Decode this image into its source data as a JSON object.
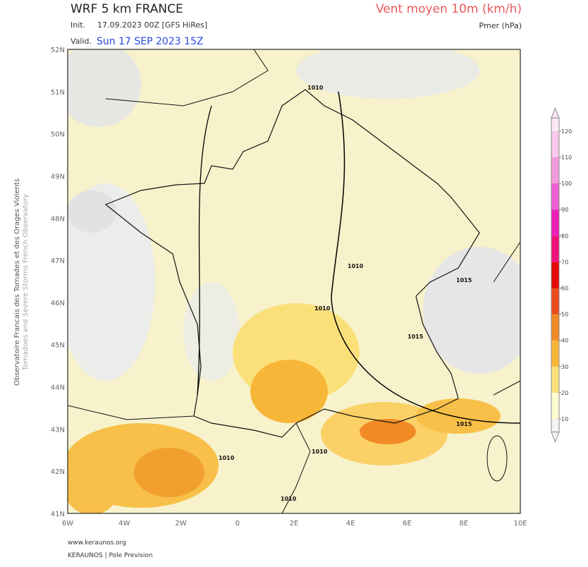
{
  "header": {
    "title": "WRF 5 km FRANCE",
    "init_label": "Init.",
    "init": "17.09.2023 00Z [GFS HiRes]",
    "valid_label": "Valid.",
    "valid": "Sun 17 SEP 2023 15Z",
    "parameter": "Vent moyen 10m (km/h)",
    "secondary": "Pmer (hPa)"
  },
  "map": {
    "lat_labels": [
      "52N",
      "51N",
      "50N",
      "49N",
      "48N",
      "47N",
      "46N",
      "45N",
      "44N",
      "43N",
      "42N",
      "41N"
    ],
    "lon_labels": [
      "6W",
      "4W",
      "2W",
      "0",
      "2E",
      "4E",
      "6E",
      "8E",
      "10E"
    ],
    "isobar_labels": [
      "1010",
      "1010",
      "1010",
      "1015",
      "1015",
      "1010",
      "1015",
      "1010",
      "1010"
    ]
  },
  "colorbar": {
    "ticks": [
      10,
      20,
      30,
      40,
      50,
      60,
      70,
      80,
      90,
      100,
      110,
      120
    ],
    "colors": [
      "#f4f4f4",
      "#fdfbd0",
      "#fbe07a",
      "#f8b638",
      "#f18a24",
      "#ea4c1c",
      "#e60a0a",
      "#f0127a",
      "#ec1fb6",
      "#ee5fd2",
      "#f29ade",
      "#f7c9ec",
      "#fbe8f6"
    ]
  },
  "sidebar": {
    "line1": "Observatoire Francais des Tornades et des Orages Violents",
    "line2": "Tornadoes and Severe Storms French Observatory"
  },
  "footer": {
    "url": "www.keraunos.org",
    "credit": "KERAUNOS | Pole Prevision"
  }
}
